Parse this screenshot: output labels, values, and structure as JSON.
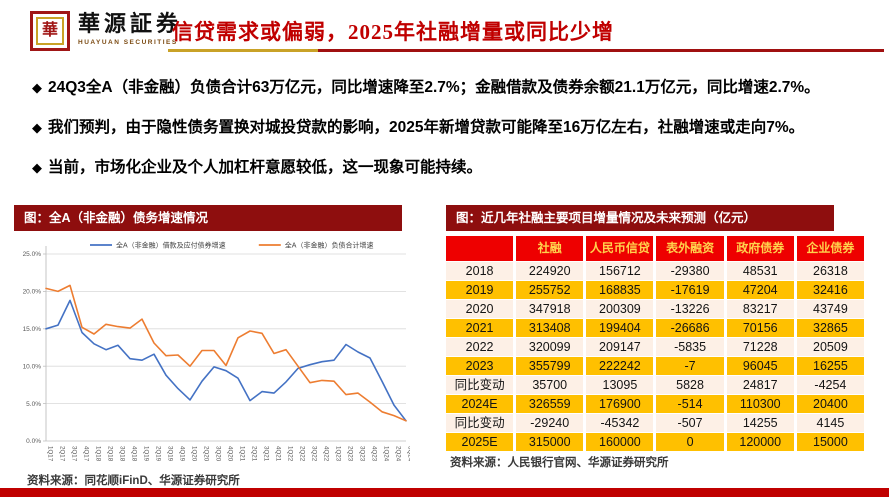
{
  "header": {
    "logo_seal_char": "華",
    "logo_name": "華源証券",
    "logo_subtitle": "HUAYUAN SECURITIES",
    "title": "信贷需求或偏弱，2025年社融增量或同比少增"
  },
  "bullets": [
    "24Q3全A（非金融）负债合计63万亿元，同比增速降至2.7%；金融借款及债券余额21.1万亿元，同比增速2.7%。",
    "我们预判，由于隐性债务置换对城投贷款的影响，2025年新增贷款可能降至16万亿左右，社融增速或走向7%。",
    "当前，市场化企业及个人加杠杆意愿较低，这一现象可能持续。"
  ],
  "left_figure": {
    "banner": "图：全A（非金融）债务增速情况",
    "source": "资料来源：同花顺iFinD、华源证券研究所"
  },
  "right_figure": {
    "banner": "图：近几年社融主要项目增量情况及未来预测（亿元）",
    "source": "资料来源：人民银行官网、华源证券研究所",
    "table": {
      "columns": [
        "",
        "社融",
        "人民币信贷",
        "表外融资",
        "政府债券",
        "企业债券"
      ],
      "rows": [
        {
          "label": "2018",
          "values": [
            "224920",
            "156712",
            "-29380",
            "48531",
            "26318"
          ],
          "highlight": false
        },
        {
          "label": "2019",
          "values": [
            "255752",
            "168835",
            "-17619",
            "47204",
            "32416"
          ],
          "highlight": true
        },
        {
          "label": "2020",
          "values": [
            "347918",
            "200309",
            "-13226",
            "83217",
            "43749"
          ],
          "highlight": false
        },
        {
          "label": "2021",
          "values": [
            "313408",
            "199404",
            "-26686",
            "70156",
            "32865"
          ],
          "highlight": true
        },
        {
          "label": "2022",
          "values": [
            "320099",
            "209147",
            "-5835",
            "71228",
            "20509"
          ],
          "highlight": false
        },
        {
          "label": "2023",
          "values": [
            "355799",
            "222242",
            "-7",
            "96045",
            "16255"
          ],
          "highlight": true
        },
        {
          "label": "同比变动",
          "values": [
            "35700",
            "13095",
            "5828",
            "24817",
            "-4254"
          ],
          "highlight": false
        },
        {
          "label": "2024E",
          "values": [
            "326559",
            "176900",
            "-514",
            "110300",
            "20400"
          ],
          "highlight": true
        },
        {
          "label": "同比变动",
          "values": [
            "-29240",
            "-45342",
            "-507",
            "14255",
            "4145"
          ],
          "highlight": false
        },
        {
          "label": "2025E",
          "values": [
            "315000",
            "160000",
            "0",
            "120000",
            "15000"
          ],
          "highlight": true
        }
      ]
    }
  },
  "chart_data": {
    "type": "line",
    "title": "全A（非金融）债务增速情况",
    "x": [
      "1Q17",
      "2Q17",
      "3Q17",
      "4Q17",
      "1Q18",
      "2Q18",
      "3Q18",
      "4Q18",
      "1Q19",
      "2Q19",
      "3Q19",
      "4Q19",
      "1Q20",
      "2Q20",
      "3Q20",
      "4Q20",
      "1Q21",
      "2Q21",
      "3Q21",
      "4Q21",
      "1Q22",
      "2Q22",
      "3Q22",
      "4Q22",
      "1Q23",
      "2Q23",
      "3Q23",
      "4Q23",
      "1Q24",
      "2Q24",
      "3Q24"
    ],
    "series": [
      {
        "name": "全A（非金融）借款及应付债券增速",
        "color": "#4472C4",
        "values": [
          15.0,
          15.5,
          18.8,
          14.5,
          13.0,
          12.2,
          12.8,
          11.0,
          10.8,
          11.6,
          8.8,
          7.0,
          5.5,
          8.0,
          9.9,
          9.4,
          8.4,
          5.4,
          6.6,
          6.4,
          7.9,
          9.7,
          10.2,
          10.6,
          10.8,
          12.9,
          11.9,
          11.1,
          8.0,
          4.8,
          2.7
        ]
      },
      {
        "name": "全A（非金融）负债合计增速",
        "color": "#ED7D31",
        "values": [
          20.4,
          20.0,
          20.8,
          15.2,
          14.3,
          15.6,
          15.3,
          15.1,
          16.3,
          13.1,
          11.4,
          11.5,
          10.0,
          12.1,
          12.1,
          10.1,
          13.8,
          14.7,
          14.4,
          11.7,
          12.2,
          10.0,
          7.8,
          8.1,
          8.0,
          6.2,
          6.4,
          5.2,
          3.9,
          3.4,
          2.7
        ]
      }
    ],
    "ylim": [
      0,
      25
    ],
    "ytick_values": [
      0,
      5,
      10,
      15,
      20,
      25
    ],
    "ytick_labels": [
      "0.0%",
      "5.0%",
      "10.0%",
      "15.0%",
      "20.0%",
      "25.0%"
    ],
    "grid": true,
    "legend_position": "top"
  },
  "colors": {
    "title_red": "#C00000",
    "banner_dark_red": "#8E0E0E",
    "table_header_red": "#EE0000",
    "table_header_text_gold": "#FFD24D",
    "row_gold": "#FFC000",
    "row_light": "#FDF0E6",
    "accent_gold": "#C9A227",
    "line_blue": "#4472C4",
    "line_orange": "#ED7D31",
    "bottom_bar_red": "#C00000"
  }
}
